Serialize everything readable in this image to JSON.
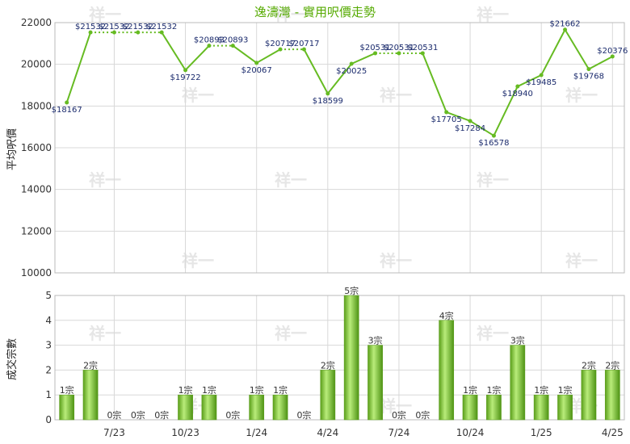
{
  "chart_data": [
    {
      "type": "line",
      "title": "逸濤灣 - 實用呎價走勢",
      "ylabel": "平均呎價",
      "ylim": [
        10000,
        22000
      ],
      "yticks": [
        10000,
        12000,
        14000,
        16000,
        18000,
        20000,
        22000
      ],
      "grid": true,
      "color": "#66bb22",
      "n_points": 24,
      "values": [
        18167,
        21532,
        21532,
        21532,
        21532,
        19722,
        20893,
        20893,
        20067,
        20717,
        20717,
        18599,
        20025,
        20531,
        20531,
        20531,
        17705,
        17284,
        16578,
        18940,
        19485,
        21662,
        19768,
        20376
      ],
      "labels": [
        "$18167",
        "$21532",
        "$21532",
        "$21532",
        "$21532",
        "$19722",
        "$20893",
        "$20893",
        "$20067",
        "$20717",
        "$20717",
        "$18599",
        "$20025",
        "$20531",
        "$20531",
        "$20531",
        "$17705",
        "$17284",
        "$16578",
        "$18940",
        "$19485",
        "$21662",
        "$19768",
        "$20376"
      ],
      "dotted_segments": [
        1,
        2,
        3,
        6,
        9,
        13,
        14
      ]
    },
    {
      "type": "bar",
      "ylabel": "成交宗數",
      "ylim": [
        0,
        5
      ],
      "yticks": [
        0,
        1,
        2,
        3,
        4,
        5
      ],
      "grid": true,
      "color": "#66bb22",
      "values": [
        1,
        2,
        0,
        0,
        0,
        1,
        1,
        0,
        1,
        1,
        0,
        2,
        5,
        3,
        0,
        0,
        4,
        1,
        1,
        3,
        1,
        1,
        2,
        2
      ],
      "labels": [
        "1宗",
        "2宗",
        "0宗",
        "0宗",
        "0宗",
        "1宗",
        "1宗",
        "0宗",
        "1宗",
        "1宗",
        "0宗",
        "2宗",
        "5宗",
        "3宗",
        "0宗",
        "0宗",
        "4宗",
        "1宗",
        "1宗",
        "3宗",
        "1宗",
        "1宗",
        "2宗",
        "2宗"
      ],
      "xticks": [
        {
          "index": 2,
          "label": "7/23"
        },
        {
          "index": 5,
          "label": "10/23"
        },
        {
          "index": 8,
          "label": "1/24"
        },
        {
          "index": 11,
          "label": "4/24"
        },
        {
          "index": 14,
          "label": "7/24"
        },
        {
          "index": 17,
          "label": "10/24"
        },
        {
          "index": 20,
          "label": "1/25"
        },
        {
          "index": 23,
          "label": "4/25"
        }
      ]
    }
  ],
  "watermark": "祥一"
}
